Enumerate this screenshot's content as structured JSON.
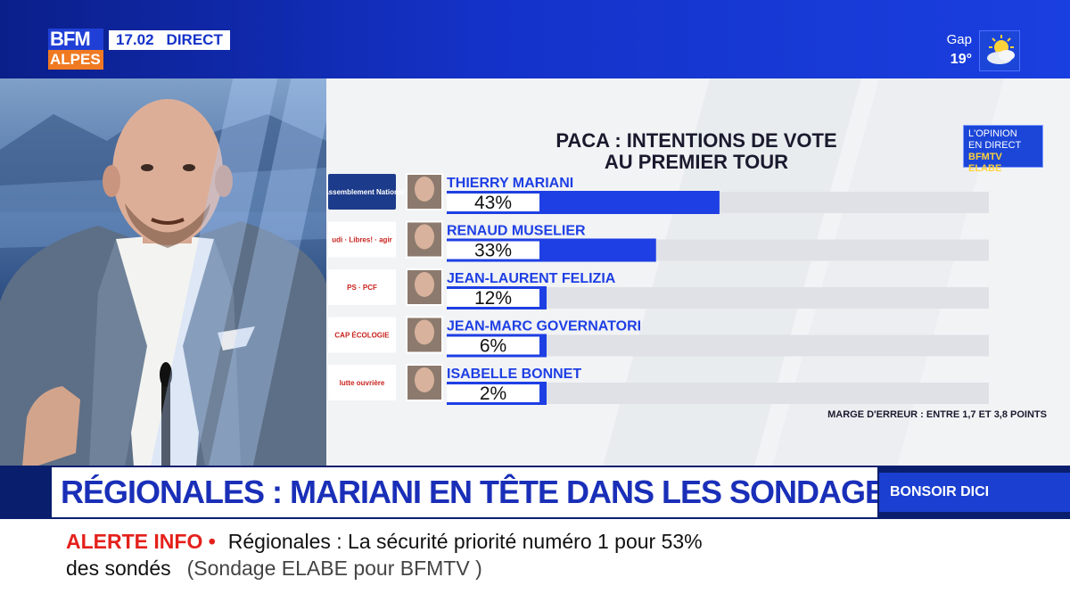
{
  "header": {
    "logo_top": "BFM",
    "logo_bottom": "ALPES",
    "time": "17.02",
    "live": "DIRECT",
    "weather_city": "Gap",
    "weather_temp": "19°",
    "weather_icon": "sun-cloud-icon"
  },
  "chart_data": {
    "type": "bar",
    "title_line1": "PACA : INTENTIONS DE VOTE",
    "title_line2": "AU PREMIER TOUR",
    "categories": [
      "THIERRY MARIANI",
      "RENAUD MUSELIER",
      "JEAN-LAURENT FELIZIA",
      "JEAN-MARC GOVERNATORI",
      "ISABELLE BONNET"
    ],
    "values": [
      43,
      33,
      12,
      6,
      2
    ],
    "value_labels": [
      "43%",
      "33%",
      "12%",
      "6%",
      "2%"
    ],
    "party_logo_labels": [
      "Rassemblement National",
      "udi · Libres! · agir",
      "PS · PCF",
      "CAP ÉCOLOGIE",
      "lutte ouvrière"
    ],
    "ylim": [
      0,
      100
    ],
    "unit": "%",
    "bar_color": "#1e3fe4",
    "track_color": "#dfe1e6",
    "note": "MARGE D'ERREUR : ENTRE 1,7 ET 3,8 POINTS"
  },
  "badge": {
    "line1": "L'OPINION",
    "line2": "EN DIRECT",
    "line3": "BFMTV ELABE"
  },
  "banner": {
    "headline": "RÉGIONALES : MARIANI EN TÊTE DANS LES SONDAGES",
    "program": "BONSOIR DICI"
  },
  "ticker": {
    "alert": "ALERTE INFO •",
    "line1": "Régionales : La sécurité priorité numéro 1 pour 53%",
    "line2": "des sondés",
    "source": "(Sondage ELABE pour BFMTV )"
  }
}
